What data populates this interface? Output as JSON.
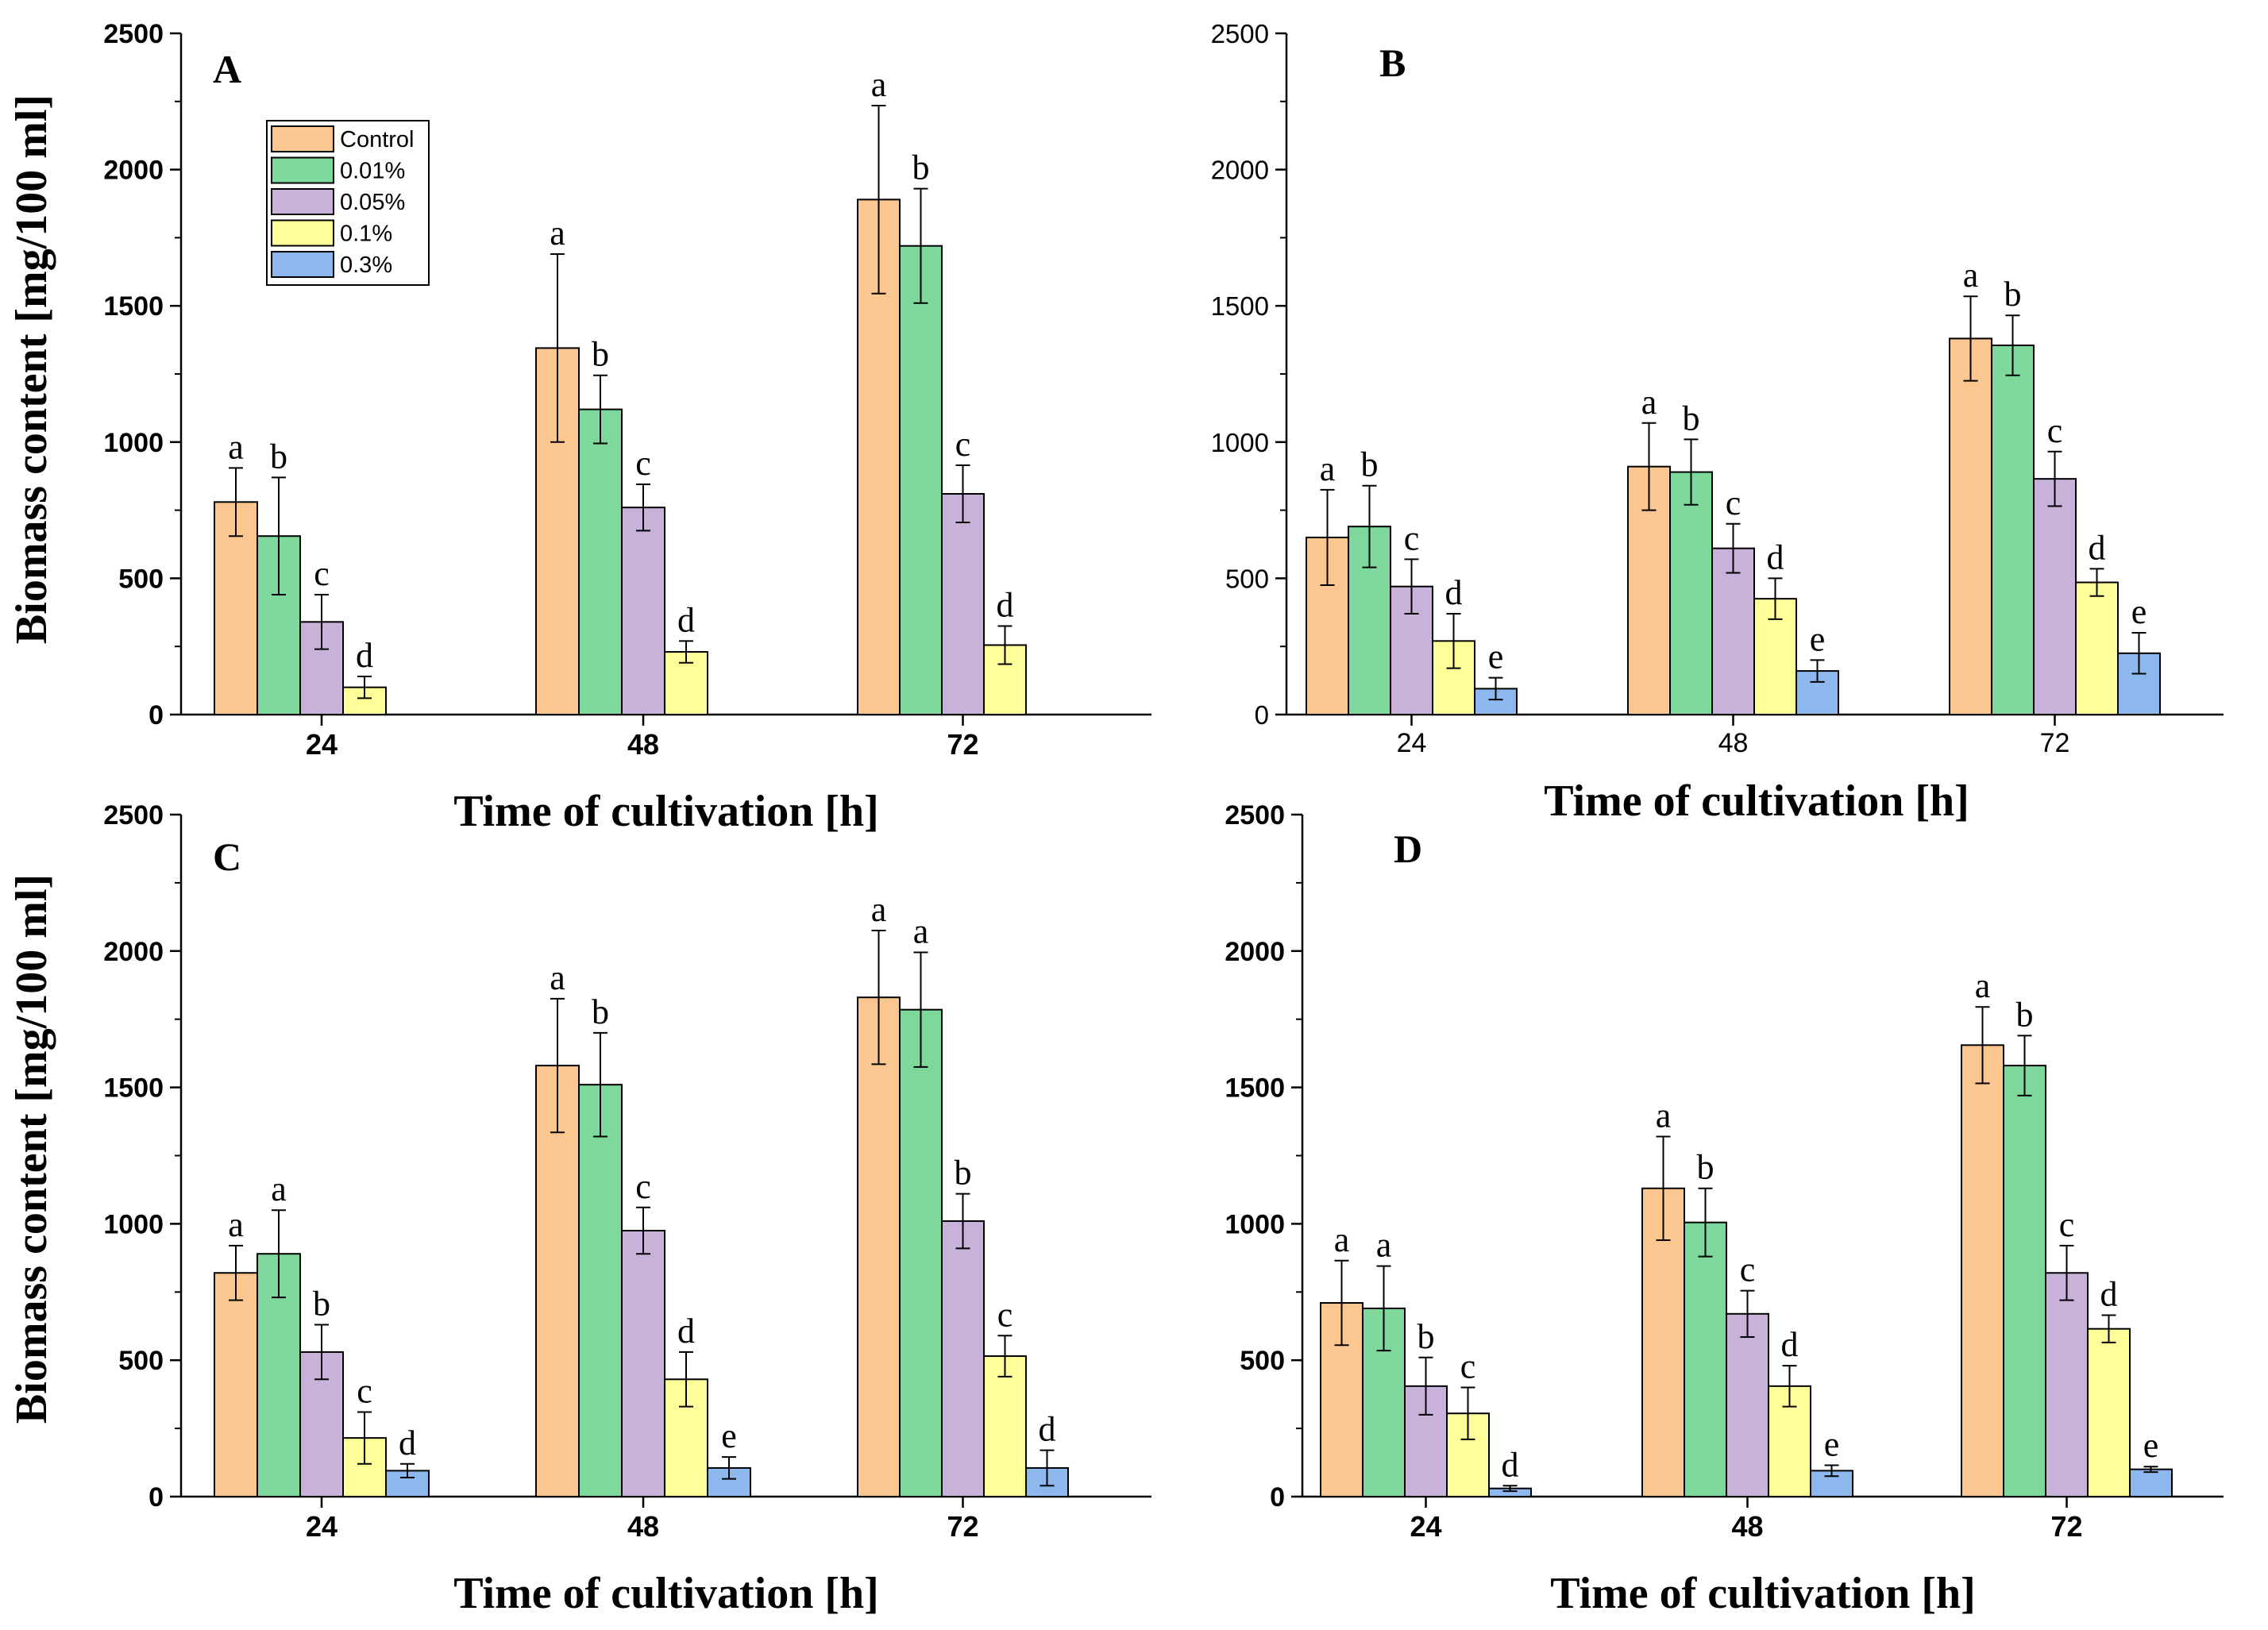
{
  "colors": {
    "Control": "#fcc690",
    "0.01%": "#7fd89b",
    "0.05%": "#c8b2d9",
    "0.1%": "#ffff99",
    "0.3%": "#8db8ee"
  },
  "shared": {
    "ylabel": "Biomass content [mg/100 ml]",
    "xlabel": "Time of cultivation [h]"
  },
  "legend": {
    "entries": [
      "Control",
      "0.01%",
      "0.05%",
      "0.1%",
      "0.3%"
    ]
  },
  "chart_data": [
    {
      "type": "bar",
      "panel": "A",
      "categories": [
        "24",
        "48",
        "72"
      ],
      "ylim": [
        0,
        2500
      ],
      "yticks": [
        "0",
        "500",
        "1000",
        "1500",
        "2000",
        "2500"
      ],
      "xlabel": "Time of cultivation [h]",
      "ylabel": "Biomass content [mg/100 ml]",
      "series": [
        {
          "name": "Control",
          "values": [
            780,
            1345,
            1890
          ],
          "errors": [
            125,
            345,
            345
          ],
          "letters": [
            "a",
            "a",
            "a"
          ]
        },
        {
          "name": "0.01%",
          "values": [
            655,
            1120,
            1720
          ],
          "errors": [
            215,
            125,
            210
          ],
          "letters": [
            "b",
            "b",
            "b"
          ]
        },
        {
          "name": "0.05%",
          "values": [
            340,
            760,
            810
          ],
          "errors": [
            100,
            85,
            105
          ],
          "letters": [
            "c",
            "c",
            "c"
          ]
        },
        {
          "name": "0.1%",
          "values": [
            100,
            230,
            255
          ],
          "errors": [
            40,
            40,
            70
          ],
          "letters": [
            "d",
            "d",
            "d"
          ]
        }
      ]
    },
    {
      "type": "bar",
      "panel": "B",
      "categories": [
        "24",
        "48",
        "72"
      ],
      "ylim": [
        0,
        2500
      ],
      "yticks": [
        "0",
        "500",
        "1000",
        "1500",
        "2000",
        "2500"
      ],
      "xlabel": "Time of cultivation [h]",
      "series": [
        {
          "name": "Control",
          "values": [
            650,
            910,
            1380
          ],
          "errors": [
            175,
            160,
            155
          ],
          "letters": [
            "a",
            "a",
            "a"
          ]
        },
        {
          "name": "0.01%",
          "values": [
            690,
            890,
            1355
          ],
          "errors": [
            150,
            120,
            110
          ],
          "letters": [
            "b",
            "b",
            "b"
          ]
        },
        {
          "name": "0.05%",
          "values": [
            470,
            610,
            865
          ],
          "errors": [
            100,
            90,
            100
          ],
          "letters": [
            "c",
            "c",
            "c"
          ]
        },
        {
          "name": "0.1%",
          "values": [
            270,
            425,
            485
          ],
          "errors": [
            100,
            75,
            50
          ],
          "letters": [
            "d",
            "d",
            "d"
          ]
        },
        {
          "name": "0.3%",
          "values": [
            95,
            160,
            225
          ],
          "errors": [
            40,
            40,
            75
          ],
          "letters": [
            "e",
            "e",
            "e"
          ]
        }
      ]
    },
    {
      "type": "bar",
      "panel": "C",
      "categories": [
        "24",
        "48",
        "72"
      ],
      "ylim": [
        0,
        2500
      ],
      "yticks": [
        "0",
        "500",
        "1000",
        "1500",
        "2000",
        "2500"
      ],
      "xlabel": "Time of cultivation [h]",
      "ylabel": "Biomass content [mg/100 ml]",
      "series": [
        {
          "name": "Control",
          "values": [
            820,
            1580,
            1830
          ],
          "errors": [
            100,
            245,
            245
          ],
          "letters": [
            "a",
            "a",
            "a"
          ]
        },
        {
          "name": "0.01%",
          "values": [
            890,
            1510,
            1785
          ],
          "errors": [
            160,
            190,
            210
          ],
          "letters": [
            "a",
            "b",
            "a"
          ]
        },
        {
          "name": "0.05%",
          "values": [
            530,
            975,
            1010
          ],
          "errors": [
            100,
            85,
            100
          ],
          "letters": [
            "b",
            "c",
            "b"
          ]
        },
        {
          "name": "0.1%",
          "values": [
            215,
            430,
            515
          ],
          "errors": [
            95,
            100,
            75
          ],
          "letters": [
            "c",
            "d",
            "c"
          ]
        },
        {
          "name": "0.3%",
          "values": [
            95,
            105,
            105
          ],
          "errors": [
            25,
            40,
            65
          ],
          "letters": [
            "d",
            "e",
            "d"
          ]
        }
      ]
    },
    {
      "type": "bar",
      "panel": "D",
      "categories": [
        "24",
        "48",
        "72"
      ],
      "ylim": [
        0,
        2500
      ],
      "yticks": [
        "0",
        "500",
        "1000",
        "1500",
        "2000",
        "2500"
      ],
      "xlabel": "Time of cultivation [h]",
      "series": [
        {
          "name": "Control",
          "values": [
            710,
            1130,
            1655
          ],
          "errors": [
            155,
            190,
            140
          ],
          "letters": [
            "a",
            "a",
            "a"
          ]
        },
        {
          "name": "0.01%",
          "values": [
            690,
            1005,
            1580
          ],
          "errors": [
            155,
            125,
            110
          ],
          "letters": [
            "a",
            "b",
            "b"
          ]
        },
        {
          "name": "0.05%",
          "values": [
            405,
            670,
            820
          ],
          "errors": [
            105,
            85,
            100
          ],
          "letters": [
            "b",
            "c",
            "c"
          ]
        },
        {
          "name": "0.1%",
          "values": [
            305,
            405,
            615
          ],
          "errors": [
            95,
            75,
            50
          ],
          "letters": [
            "c",
            "d",
            "d"
          ]
        },
        {
          "name": "0.3%",
          "values": [
            30,
            95,
            100
          ],
          "errors": [
            10,
            20,
            10
          ],
          "letters": [
            "d",
            "e",
            "e"
          ]
        }
      ]
    }
  ]
}
